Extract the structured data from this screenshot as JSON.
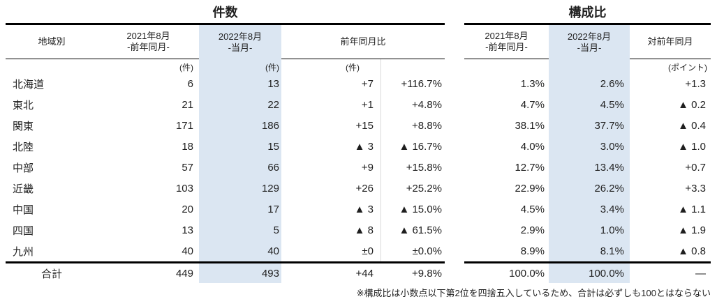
{
  "count_table": {
    "title": "件数",
    "headers": {
      "region": "地域別",
      "prev_year": {
        "line1": "2021年8月",
        "line2": "-前年同月-"
      },
      "current": {
        "line1": "2022年8月",
        "line2": "-当月-"
      },
      "yoy": "前年同月比"
    },
    "units": {
      "prev_year": "(件)",
      "current": "(件)",
      "yoy": "(件)"
    },
    "rows": [
      {
        "region": "北海道",
        "prev": "6",
        "curr": "13",
        "diff": "+7",
        "pct": "+116.7%"
      },
      {
        "region": "東北",
        "prev": "21",
        "curr": "22",
        "diff": "+1",
        "pct": "+4.8%"
      },
      {
        "region": "関東",
        "prev": "171",
        "curr": "186",
        "diff": "+15",
        "pct": "+8.8%"
      },
      {
        "region": "北陸",
        "prev": "18",
        "curr": "15",
        "diff": "▲ 3",
        "pct": "▲ 16.7%"
      },
      {
        "region": "中部",
        "prev": "57",
        "curr": "66",
        "diff": "+9",
        "pct": "+15.8%"
      },
      {
        "region": "近畿",
        "prev": "103",
        "curr": "129",
        "diff": "+26",
        "pct": "+25.2%"
      },
      {
        "region": "中国",
        "prev": "20",
        "curr": "17",
        "diff": "▲ 3",
        "pct": "▲ 15.0%"
      },
      {
        "region": "四国",
        "prev": "13",
        "curr": "5",
        "diff": "▲ 8",
        "pct": "▲ 61.5%"
      },
      {
        "region": "九州",
        "prev": "40",
        "curr": "40",
        "diff": "±0",
        "pct": "±0.0%"
      }
    ],
    "total": {
      "label": "合計",
      "prev": "449",
      "curr": "493",
      "diff": "+44",
      "pct": "+9.8%"
    }
  },
  "share_table": {
    "title": "構成比",
    "headers": {
      "prev_year": {
        "line1": "2021年8月",
        "line2": "-前年同月-"
      },
      "current": {
        "line1": "2022年8月",
        "line2": "-当月-"
      },
      "vs_prev": "対前年同月"
    },
    "units": {
      "vs_prev": "(ポイント)"
    },
    "rows": [
      {
        "prev": "1.3%",
        "curr": "2.6%",
        "point": "+1.3"
      },
      {
        "prev": "4.7%",
        "curr": "4.5%",
        "point": "▲ 0.2"
      },
      {
        "prev": "38.1%",
        "curr": "37.7%",
        "point": "▲ 0.4"
      },
      {
        "prev": "4.0%",
        "curr": "3.0%",
        "point": "▲ 1.0"
      },
      {
        "prev": "12.7%",
        "curr": "13.4%",
        "point": "+0.7"
      },
      {
        "prev": "22.9%",
        "curr": "26.2%",
        "point": "+3.3"
      },
      {
        "prev": "4.5%",
        "curr": "3.4%",
        "point": "▲ 1.1"
      },
      {
        "prev": "2.9%",
        "curr": "1.0%",
        "point": "▲ 1.9"
      },
      {
        "prev": "8.9%",
        "curr": "8.1%",
        "point": "▲ 0.8"
      }
    ],
    "total": {
      "prev": "100.0%",
      "curr": "100.0%",
      "point": "—"
    }
  },
  "footnote": "※構成比は小数点以下第2位を四捨五入しているため、合計は必ずしも100とはならない",
  "colors": {
    "highlight": "#dbe6f2",
    "text": "#1f1f1f",
    "line": "#000000",
    "separator": "#d9d9d9"
  }
}
